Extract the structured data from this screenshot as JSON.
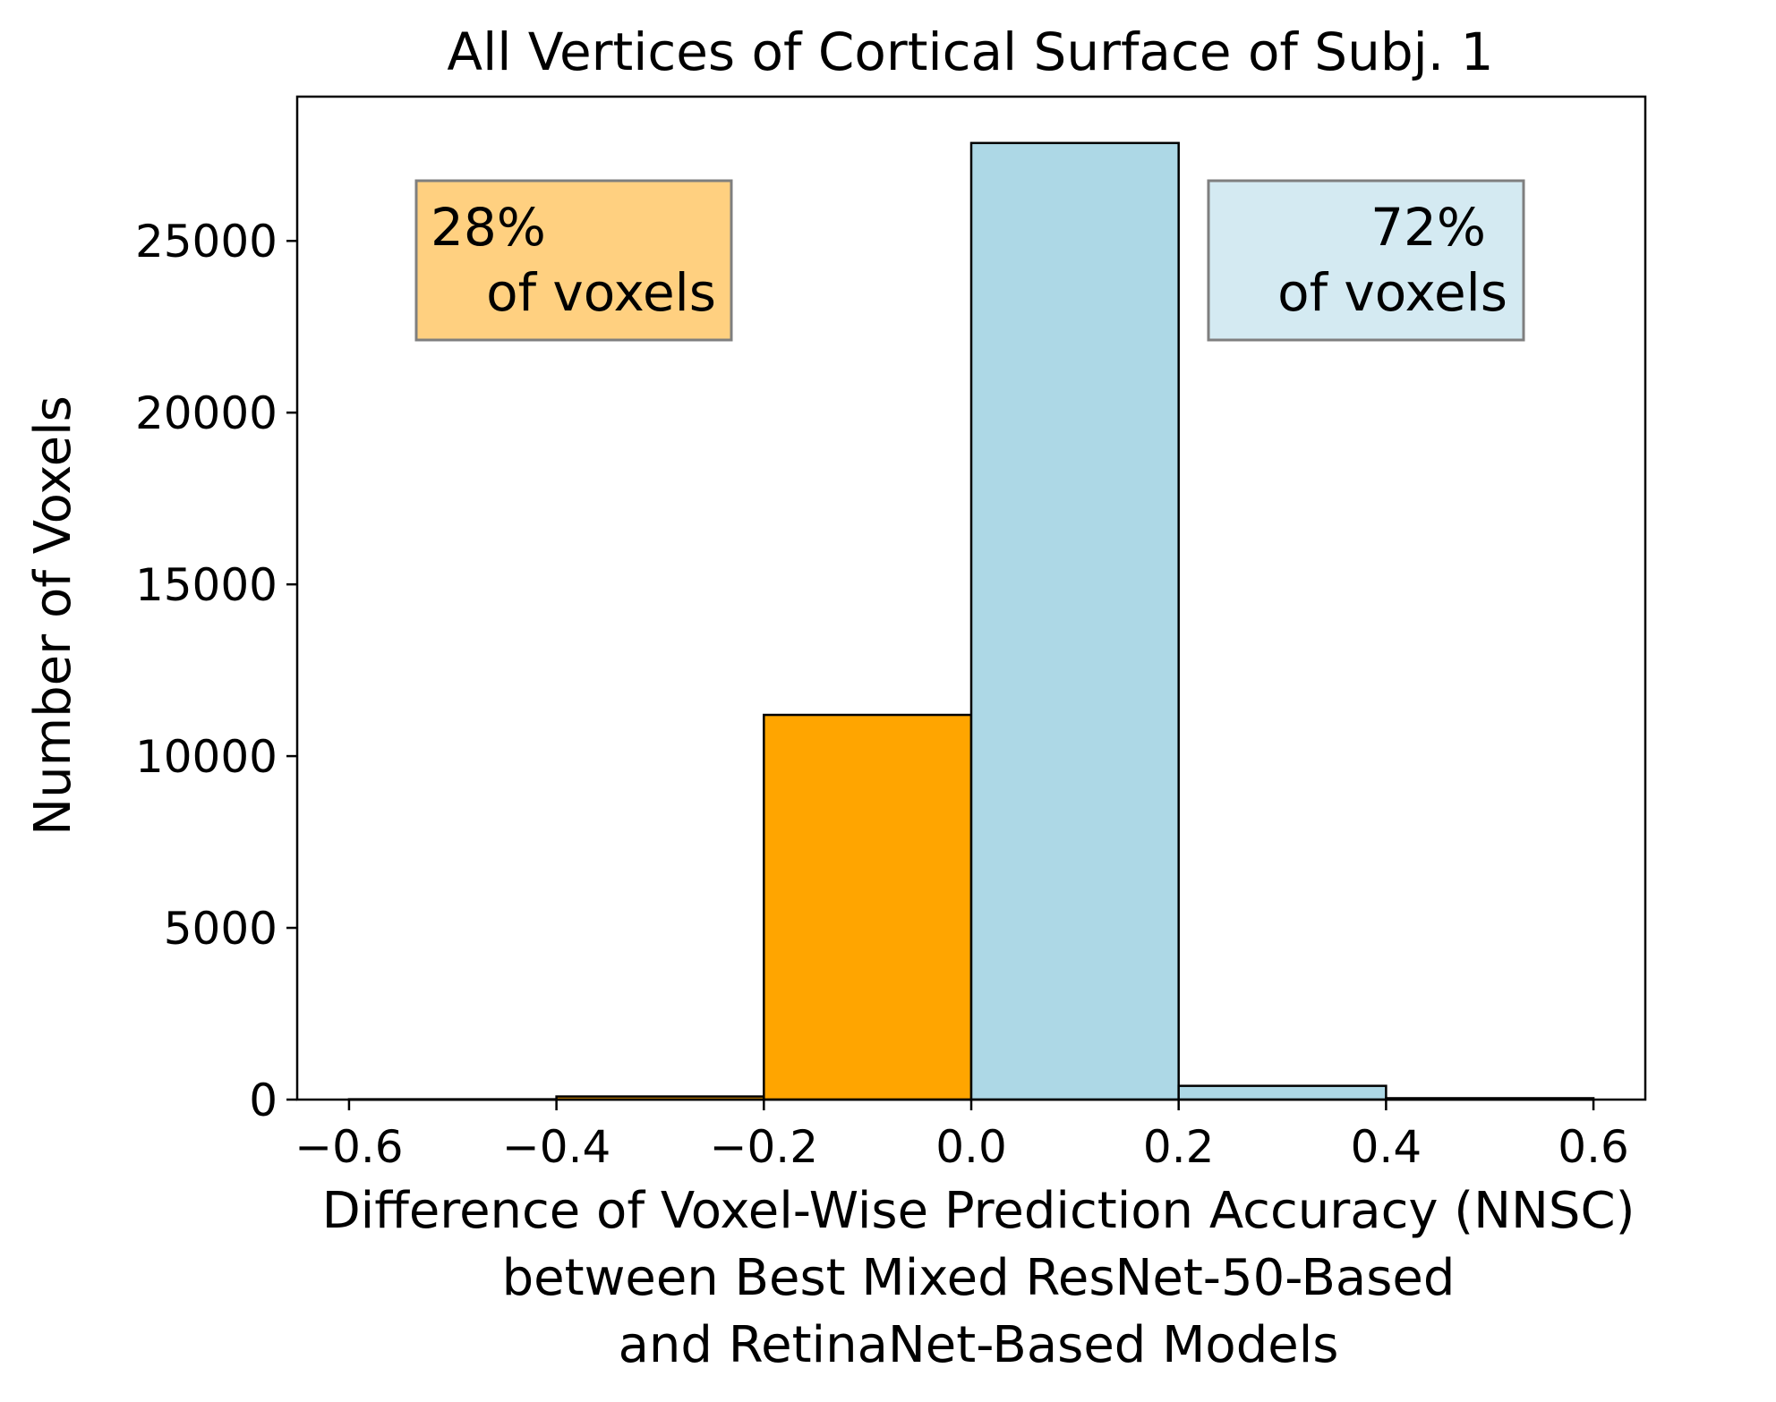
{
  "chart_data": {
    "type": "bar",
    "title": "All Vertices of Cortical Surface of Subj. 1",
    "xlabel_lines": [
      "Difference of Voxel-Wise Prediction Accuracy (NNSC)",
      "between Best Mixed ResNet-50-Based",
      "and RetinaNet-Based Models"
    ],
    "ylabel": "Number of Voxels",
    "xlim": [
      -0.65,
      0.65
    ],
    "ylim": [
      0,
      29200
    ],
    "xticks": [
      {
        "value": -0.6,
        "label": "−0.6"
      },
      {
        "value": -0.4,
        "label": "−0.4"
      },
      {
        "value": -0.2,
        "label": "−0.2"
      },
      {
        "value": 0.0,
        "label": "0.0"
      },
      {
        "value": 0.2,
        "label": "0.2"
      },
      {
        "value": 0.4,
        "label": "0.4"
      },
      {
        "value": 0.6,
        "label": "0.6"
      }
    ],
    "yticks": [
      {
        "value": 0,
        "label": "0"
      },
      {
        "value": 5000,
        "label": "5000"
      },
      {
        "value": 10000,
        "label": "10000"
      },
      {
        "value": 15000,
        "label": "15000"
      },
      {
        "value": 20000,
        "label": "20000"
      },
      {
        "value": 25000,
        "label": "25000"
      }
    ],
    "bins": [
      {
        "x0": -0.6,
        "x1": -0.4,
        "count": 10,
        "color": "#ffa500"
      },
      {
        "x0": -0.4,
        "x1": -0.2,
        "count": 90,
        "color": "#ffa500"
      },
      {
        "x0": -0.2,
        "x1": 0.0,
        "count": 11200,
        "color": "#ffa500"
      },
      {
        "x0": 0.0,
        "x1": 0.2,
        "count": 27850,
        "color": "#add8e6"
      },
      {
        "x0": 0.2,
        "x1": 0.4,
        "count": 400,
        "color": "#add8e6"
      },
      {
        "x0": 0.4,
        "x1": 0.6,
        "count": 40,
        "color": "#add8e6"
      }
    ],
    "annotations": [
      {
        "name": "negative-share",
        "lines": [
          "28%",
          " of voxels"
        ],
        "bg": "#ffd080",
        "side": "left"
      },
      {
        "name": "positive-share",
        "lines": [
          "72%",
          "of voxels"
        ],
        "bg": "#d4eaf2",
        "side": "right"
      }
    ],
    "grid": false,
    "colors": {
      "negative": "#ffa500",
      "positive": "#add8e6",
      "edge": "#000000"
    }
  }
}
